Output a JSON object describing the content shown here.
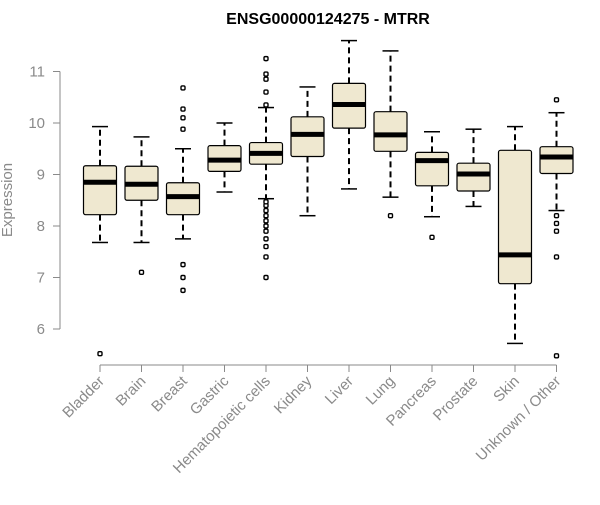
{
  "chart_data": {
    "type": "boxplot",
    "title": "ENSG00000124275 - MTRR",
    "ylabel": "Expression",
    "xlabel": "",
    "ylim": [
      5.3,
      11.75
    ],
    "yticks": [
      6,
      7,
      8,
      9,
      10,
      11
    ],
    "grid": false,
    "box_fill_color": "#efe8d0",
    "axis_color": "#8a8a8a",
    "categories": [
      "Bladder",
      "Brain",
      "Breast",
      "Gastric",
      "Hematopoietic cells",
      "Kidney",
      "Liver",
      "Lung",
      "Pancreas",
      "Prostate",
      "Skin",
      "Unknown / Other"
    ],
    "boxes": [
      {
        "category": "Bladder",
        "whisker_low": 7.68,
        "q1": 8.22,
        "median": 8.85,
        "q3": 9.17,
        "whisker_high": 9.93,
        "outliers": [
          5.52
        ]
      },
      {
        "category": "Brain",
        "whisker_low": 7.68,
        "q1": 8.5,
        "median": 8.81,
        "q3": 9.16,
        "whisker_high": 9.73,
        "outliers": [
          7.1
        ]
      },
      {
        "category": "Breast",
        "whisker_low": 7.75,
        "q1": 8.22,
        "median": 8.57,
        "q3": 8.84,
        "whisker_high": 9.5,
        "outliers": [
          6.75,
          7.0,
          7.25,
          9.88,
          10.1,
          10.27,
          10.68
        ]
      },
      {
        "category": "Gastric",
        "whisker_low": 8.66,
        "q1": 9.06,
        "median": 9.28,
        "q3": 9.56,
        "whisker_high": 10.0,
        "outliers": []
      },
      {
        "category": "Hematopoietic cells",
        "whisker_low": 8.53,
        "q1": 9.2,
        "median": 9.41,
        "q3": 9.62,
        "whisker_high": 10.3,
        "outliers": [
          7.0,
          7.4,
          7.6,
          7.75,
          7.9,
          8.0,
          8.1,
          8.2,
          8.3,
          8.4,
          8.47,
          10.35,
          10.6,
          10.85,
          10.95,
          11.25
        ]
      },
      {
        "category": "Kidney",
        "whisker_low": 8.2,
        "q1": 9.35,
        "median": 9.78,
        "q3": 10.12,
        "whisker_high": 10.7,
        "outliers": []
      },
      {
        "category": "Liver",
        "whisker_low": 8.72,
        "q1": 9.9,
        "median": 10.36,
        "q3": 10.77,
        "whisker_high": 11.6,
        "outliers": []
      },
      {
        "category": "Lung",
        "whisker_low": 8.56,
        "q1": 9.45,
        "median": 9.77,
        "q3": 10.22,
        "whisker_high": 11.4,
        "outliers": [
          8.2
        ]
      },
      {
        "category": "Pancreas",
        "whisker_low": 8.18,
        "q1": 8.78,
        "median": 9.27,
        "q3": 9.43,
        "whisker_high": 9.83,
        "outliers": [
          7.78
        ]
      },
      {
        "category": "Prostate",
        "whisker_low": 8.38,
        "q1": 8.68,
        "median": 9.01,
        "q3": 9.22,
        "whisker_high": 9.88,
        "outliers": []
      },
      {
        "category": "Skin",
        "whisker_low": 5.72,
        "q1": 6.88,
        "median": 7.44,
        "q3": 9.47,
        "whisker_high": 9.93,
        "outliers": []
      },
      {
        "category": "Unknown / Other",
        "whisker_low": 8.3,
        "q1": 9.02,
        "median": 9.34,
        "q3": 9.54,
        "whisker_high": 10.2,
        "outliers": [
          5.48,
          7.4,
          7.9,
          8.05,
          8.2,
          10.45
        ]
      }
    ]
  }
}
